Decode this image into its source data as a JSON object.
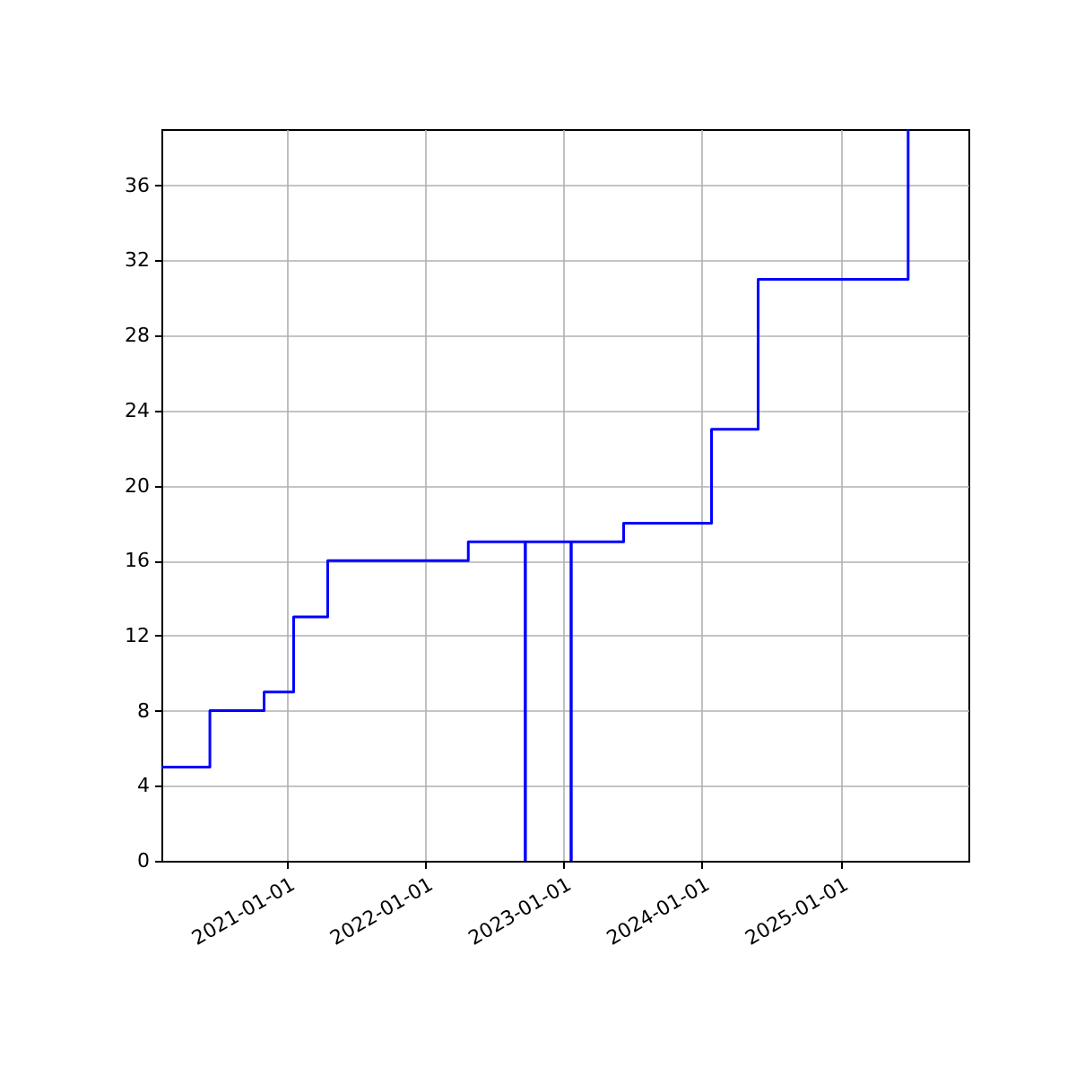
{
  "chart_data": {
    "type": "step",
    "x": [
      "2020-02-04",
      "2020-06-11",
      "2020-11-01",
      "2021-01-18",
      "2021-04-18",
      "2022-04-24",
      "2022-09-21",
      "2022-09-22",
      "2023-01-20",
      "2023-01-21",
      "2023-06-08",
      "2024-01-26",
      "2024-05-28",
      "2025-06-28"
    ],
    "series": [
      {
        "color": "#0000ff",
        "values": [
          5,
          8,
          9,
          13,
          16,
          17,
          0,
          17,
          0,
          17,
          18,
          23,
          31,
          39
        ]
      }
    ],
    "xlim": [
      "2020-02-04",
      "2025-12-04"
    ],
    "xticks": [
      "2021-01-01",
      "2022-01-01",
      "2023-01-01",
      "2024-01-01",
      "2025-01-01"
    ],
    "ylim": [
      0,
      39
    ],
    "yticks": [
      0,
      4,
      8,
      12,
      16,
      20,
      24,
      28,
      32,
      36
    ],
    "grid": true,
    "line_style": "solid",
    "marker": "none"
  }
}
